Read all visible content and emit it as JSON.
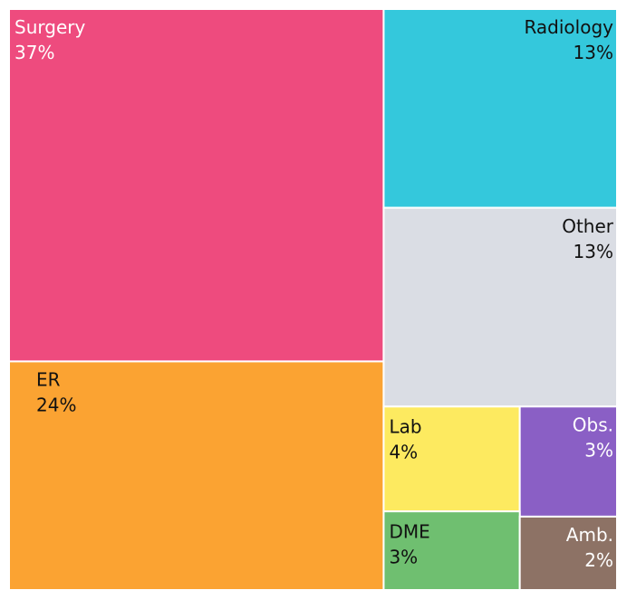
{
  "chart_data": {
    "type": "treemap",
    "categories": [
      "Surgery",
      "ER",
      "Radiology",
      "Other",
      "Lab",
      "Obs.",
      "DME",
      "Amb."
    ],
    "values": [
      37,
      24,
      13,
      13,
      4,
      3,
      3,
      2
    ],
    "value_labels": [
      "37%",
      "24%",
      "13%",
      "13%",
      "4%",
      "3%",
      "3%",
      "2%"
    ],
    "colors": [
      "#ee4b7e",
      "#fba332",
      "#34c8dc",
      "#dadde4",
      "#fdea60",
      "#8a5fc5",
      "#6fbf70",
      "#8d7265"
    ]
  }
}
